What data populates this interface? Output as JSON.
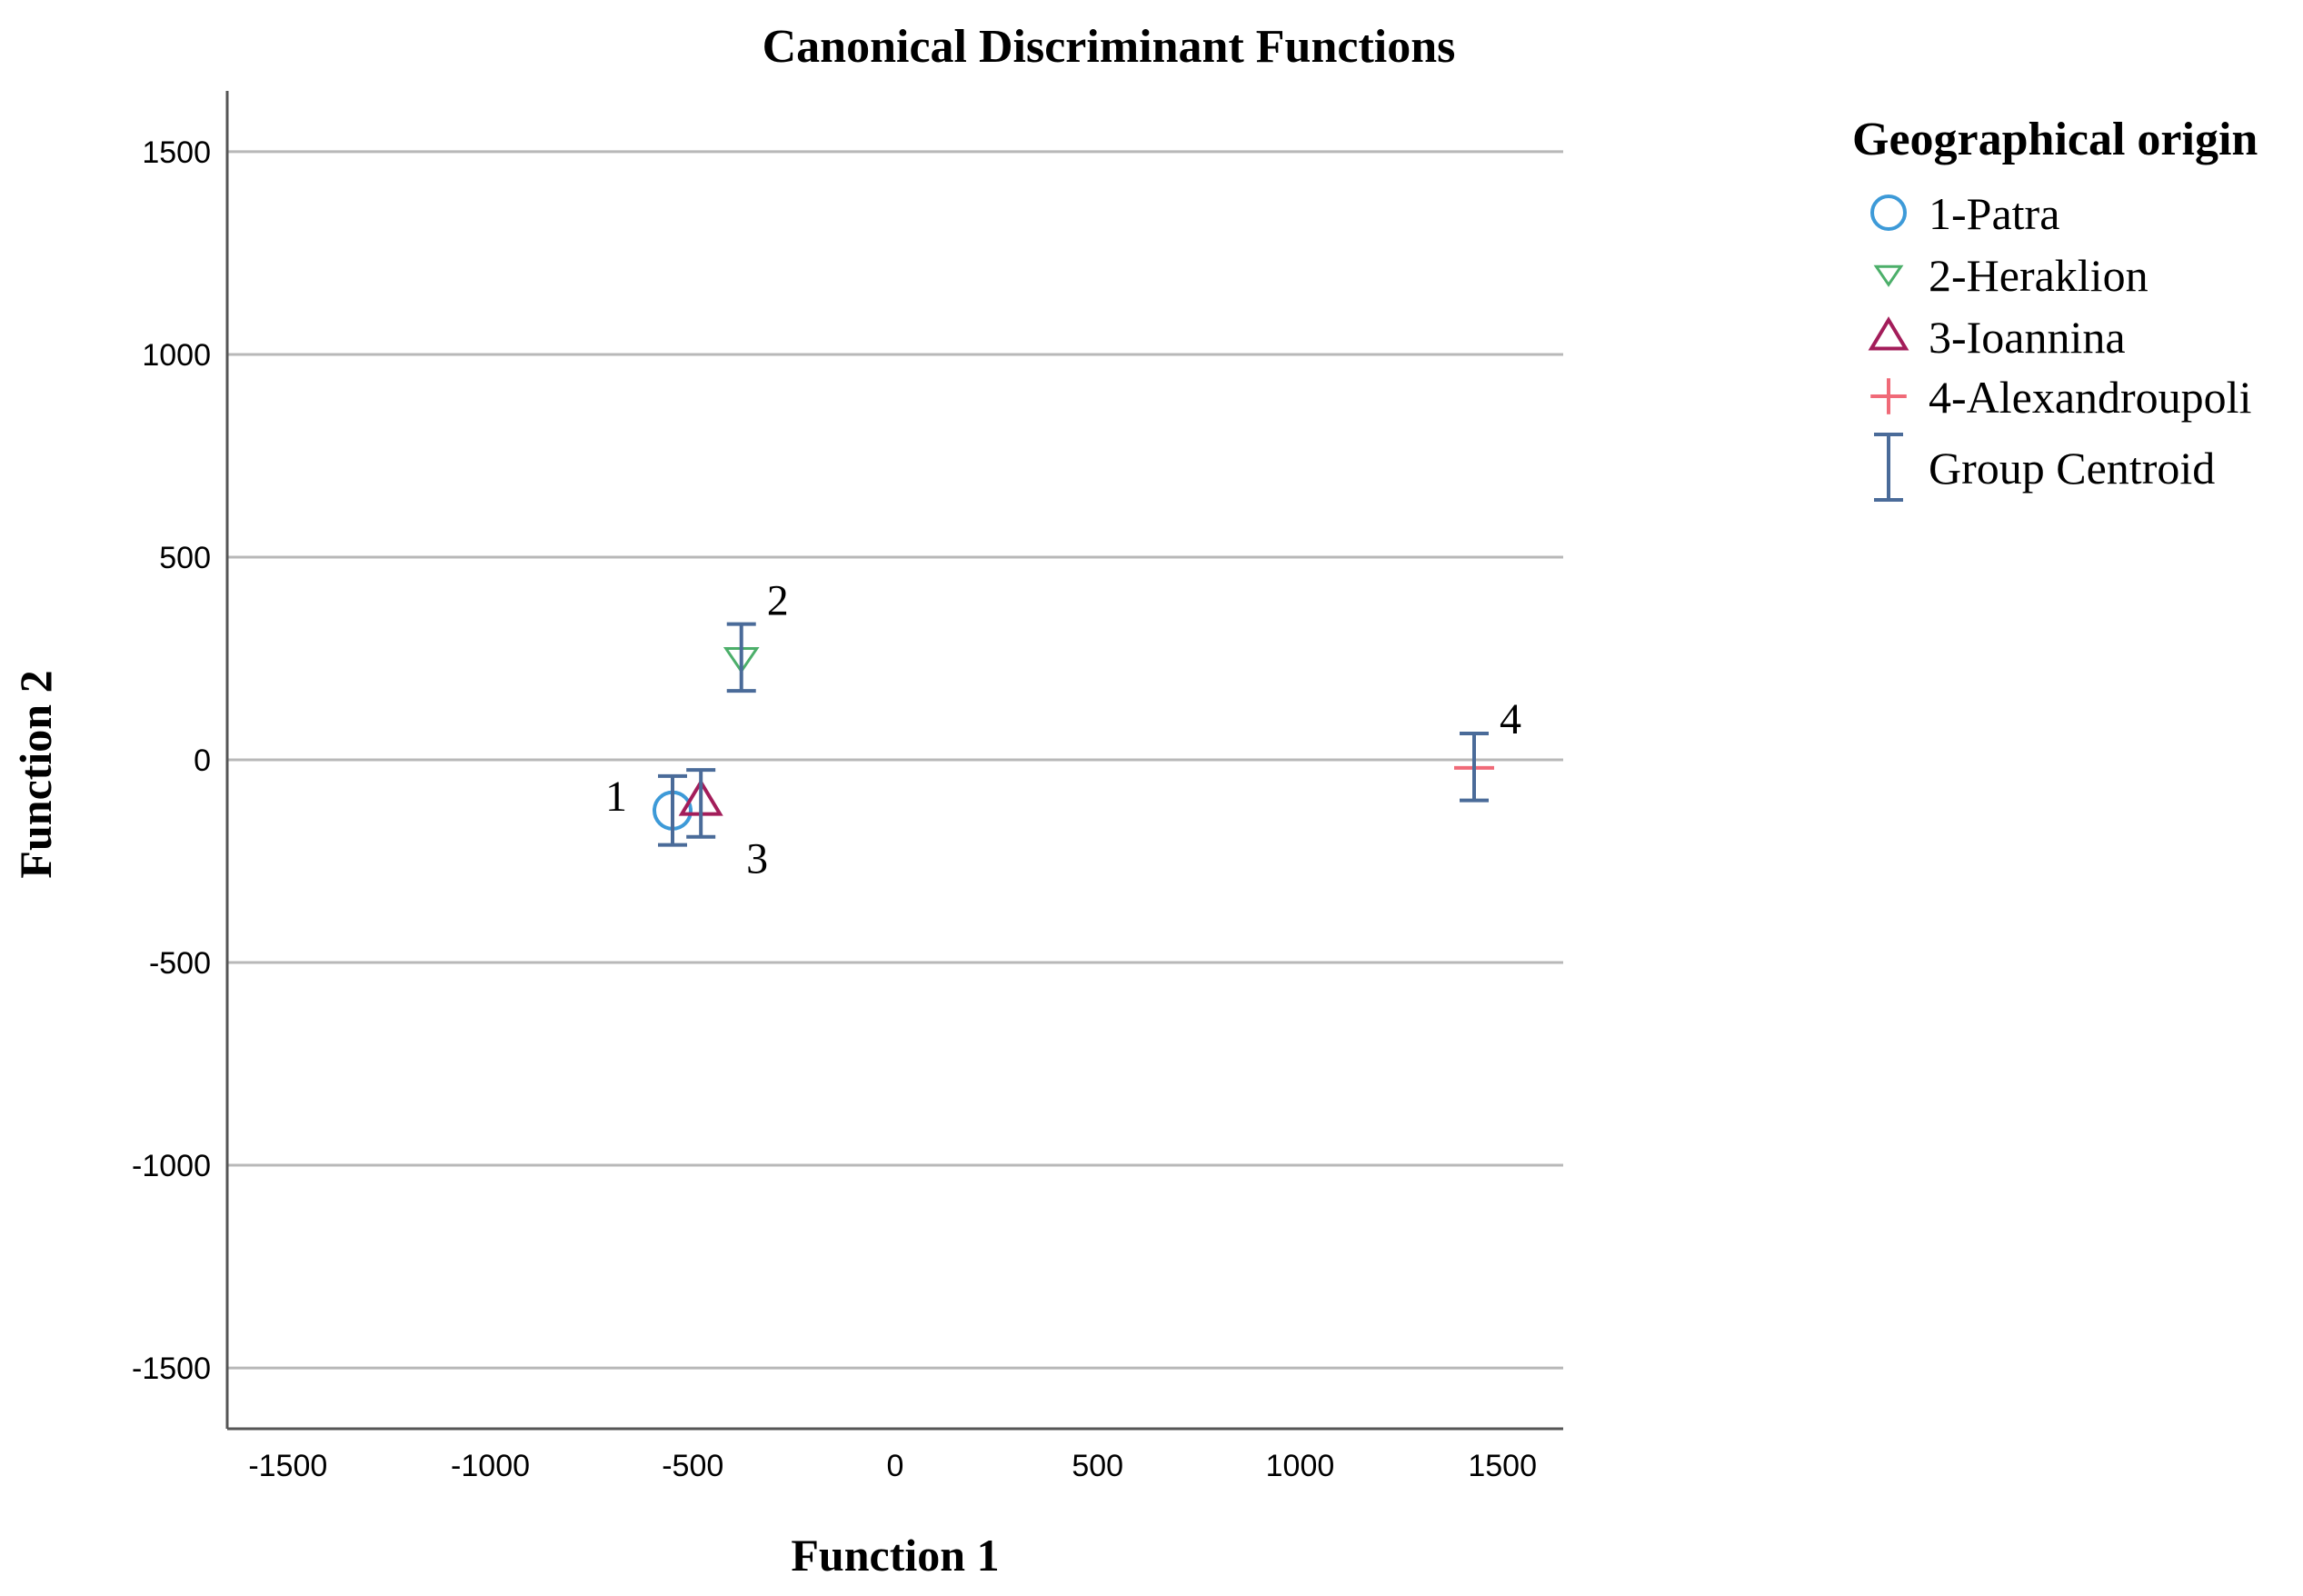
{
  "chart_data": {
    "type": "scatter",
    "title": "Canonical Discriminant Functions",
    "xlabel": "Function 1",
    "ylabel": "Function 2",
    "xlim": [
      -1650,
      1650
    ],
    "ylim": [
      -1650,
      1650
    ],
    "xticks": [
      -1500,
      -1000,
      -500,
      0,
      500,
      1000,
      1500
    ],
    "yticks": [
      1500,
      1000,
      500,
      0,
      -500,
      -1000,
      -1500
    ],
    "grid": "horizontal",
    "legend": {
      "title": "Geographical origin",
      "position": "right",
      "entries": [
        "1-Patra",
        "2-Heraklion",
        "3-Ioannina",
        "4-Alexandroupoli",
        "Group Centroid"
      ]
    },
    "series": [
      {
        "name": "1-Patra",
        "marker": "circle",
        "color": "#3d9ad8",
        "points": [
          {
            "x": -550,
            "y": -125
          }
        ]
      },
      {
        "name": "2-Heraklion",
        "marker": "triangle-down",
        "color": "#4caf6a",
        "points": [
          {
            "x": -380,
            "y": 250
          }
        ]
      },
      {
        "name": "3-Ioannina",
        "marker": "triangle-up",
        "color": "#a31d5a",
        "points": [
          {
            "x": -480,
            "y": -100
          }
        ]
      },
      {
        "name": "4-Alexandroupoli",
        "marker": "plus",
        "color": "#f06a78",
        "points": [
          {
            "x": 1430,
            "y": -20
          }
        ]
      }
    ],
    "centroids": [
      {
        "label": "1",
        "x": -550,
        "y": -125,
        "low": -210,
        "high": -40
      },
      {
        "label": "2",
        "x": -380,
        "y": 250,
        "low": 170,
        "high": 335
      },
      {
        "label": "3",
        "x": -480,
        "y": -100,
        "low": -190,
        "high": -25
      },
      {
        "label": "4",
        "x": 1430,
        "y": -20,
        "low": -100,
        "high": 65
      }
    ],
    "centroid_color": "#4a6b99"
  }
}
